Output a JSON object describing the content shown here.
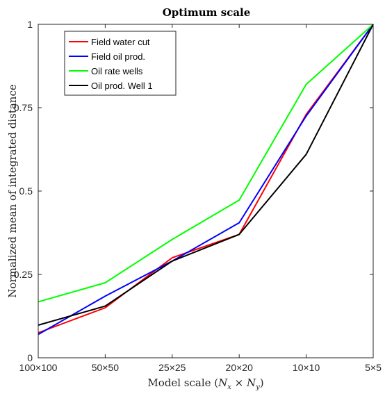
{
  "chart_data": {
    "type": "line",
    "title": "Optimum scale",
    "xlabel": "Model scale (N_x × N_y)",
    "xlabel_parts": {
      "prefix": "Model scale (",
      "n1": "N",
      "s1": "x",
      "times": " × ",
      "n2": "N",
      "s2": "y",
      "suffix": ")"
    },
    "ylabel": "Normalized mean of integrated distance",
    "categories": [
      "100×100",
      "50×50",
      "25×25",
      "20×20",
      "10×10",
      "5×5"
    ],
    "ylim": [
      0,
      1
    ],
    "yticks": [
      0,
      0.25,
      0.5,
      0.75,
      1
    ],
    "ytick_labels": [
      "0",
      "0.25",
      "0.5",
      "0.75",
      "1"
    ],
    "grid": false,
    "legend_position": "top-left",
    "series": [
      {
        "name": "Field water cut",
        "color": "#ff0000",
        "values": [
          0.075,
          0.15,
          0.3,
          0.37,
          0.73,
          1.0
        ]
      },
      {
        "name": "Field oil prod.",
        "color": "#0000ff",
        "values": [
          0.07,
          0.185,
          0.29,
          0.405,
          0.725,
          1.0
        ]
      },
      {
        "name": "Oil rate wells",
        "color": "#00ff00",
        "values": [
          0.168,
          0.225,
          0.355,
          0.473,
          0.82,
          1.0
        ]
      },
      {
        "name": "Oil prod. Well 1",
        "color": "#000000",
        "values": [
          0.098,
          0.155,
          0.29,
          0.37,
          0.61,
          1.0
        ]
      }
    ]
  }
}
